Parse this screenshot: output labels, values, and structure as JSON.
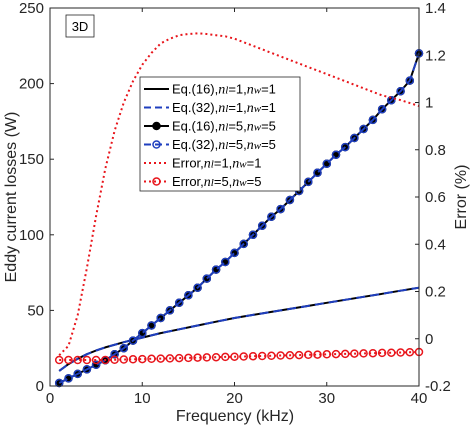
{
  "chart_data": {
    "type": "line",
    "annotation": "3D",
    "xlabel": "Frequency (kHz)",
    "ylabel_left": "Eddy current losses (W)",
    "ylabel_right": "Error (%)",
    "xlim": [
      0,
      40
    ],
    "ylim_left": [
      0,
      250
    ],
    "ylim_right": [
      -0.2,
      1.4
    ],
    "x_ticks": [
      0,
      10,
      20,
      30,
      40
    ],
    "y_ticks_left": [
      0,
      50,
      100,
      150,
      200,
      250
    ],
    "y_ticks_right": [
      -0.2,
      0,
      0.2,
      0.4,
      0.6,
      0.8,
      1,
      1.2,
      1.4
    ],
    "y_tick_labels_right": [
      "-0.2",
      "0",
      "0.2",
      "0.4",
      "0.6",
      "0.8",
      "1",
      "1.2",
      "1.4"
    ],
    "grid": false,
    "legend_position": "center-left",
    "series": [
      {
        "name": "Eq.(16), nl=1, nw=1",
        "legend_parts": {
          "prefix": "Eq.(16),",
          "sym1": "n",
          "sub1": "l",
          "eq1": "=1,",
          "sym2": "n",
          "sub2": "w",
          "eq2": "=1"
        },
        "axis": "left",
        "color": "#000000",
        "line": "solid",
        "marker": "none",
        "x": [
          1,
          2,
          3,
          4,
          5,
          6,
          8,
          10,
          12,
          14,
          16,
          18,
          20,
          22,
          24,
          26,
          28,
          30,
          32,
          34,
          36,
          38,
          40
        ],
        "values": [
          10,
          14.5,
          18,
          21,
          23.5,
          25.5,
          29,
          32,
          35,
          37.5,
          40,
          42.5,
          45,
          47,
          49,
          51,
          53,
          55,
          57,
          59,
          61,
          63,
          65
        ]
      },
      {
        "name": "Eq.(32), nl=1, nw=1",
        "legend_parts": {
          "prefix": "Eq.(32),",
          "sym1": "n",
          "sub1": "l",
          "eq1": "=1,",
          "sym2": "n",
          "sub2": "w",
          "eq2": "=1"
        },
        "axis": "left",
        "color": "#1f3fbf",
        "line": "dashed",
        "marker": "none",
        "x": [
          1,
          2,
          3,
          4,
          5,
          6,
          8,
          10,
          12,
          14,
          16,
          18,
          20,
          22,
          24,
          26,
          28,
          30,
          32,
          34,
          36,
          38,
          40
        ],
        "values": [
          10,
          14.5,
          18,
          21,
          23.5,
          25.5,
          29,
          32,
          35,
          37.5,
          40,
          42.5,
          45,
          47,
          49,
          51,
          53,
          55,
          57,
          59,
          61,
          63,
          65
        ]
      },
      {
        "name": "Eq.(16), nl=5, nw=5",
        "legend_parts": {
          "prefix": "Eq.(16),",
          "sym1": "n",
          "sub1": "l",
          "eq1": "=5,",
          "sym2": "n",
          "sub2": "w",
          "eq2": "=5"
        },
        "axis": "left",
        "color": "#000000",
        "line": "solid",
        "marker": "filled-circle",
        "x": [
          1,
          2,
          3,
          4,
          5,
          6,
          7,
          8,
          9,
          10,
          11,
          12,
          13,
          14,
          15,
          16,
          17,
          18,
          19,
          20,
          21,
          22,
          23,
          24,
          25,
          26,
          27,
          28,
          29,
          30,
          31,
          32,
          33,
          34,
          35,
          36,
          37,
          38,
          39,
          40
        ],
        "values": [
          2,
          5,
          8,
          11,
          14,
          17,
          21,
          25,
          30,
          35,
          40,
          45,
          50,
          55,
          60,
          65,
          71,
          77,
          82,
          88,
          94,
          100,
          106,
          112,
          117,
          123,
          129,
          135,
          141,
          147,
          153,
          158,
          164,
          170,
          176,
          183,
          189,
          195,
          202,
          220
        ]
      },
      {
        "name": "Eq.(32), nl=5, nw=5",
        "legend_parts": {
          "prefix": "Eq.(32),",
          "sym1": "n",
          "sub1": "l",
          "eq1": "=5,",
          "sym2": "n",
          "sub2": "w",
          "eq2": "=5"
        },
        "axis": "left",
        "color": "#1f3fbf",
        "line": "dashed",
        "marker": "open-circle",
        "x": [
          1,
          2,
          3,
          4,
          5,
          6,
          7,
          8,
          9,
          10,
          11,
          12,
          13,
          14,
          15,
          16,
          17,
          18,
          19,
          20,
          21,
          22,
          23,
          24,
          25,
          26,
          27,
          28,
          29,
          30,
          31,
          32,
          33,
          34,
          35,
          36,
          37,
          38,
          39,
          40
        ],
        "values": [
          2,
          5,
          8,
          11,
          14,
          17,
          21,
          25,
          30,
          35,
          40,
          45,
          50,
          55,
          60,
          65,
          71,
          77,
          82,
          88,
          94,
          100,
          106,
          112,
          117,
          123,
          129,
          135,
          141,
          147,
          153,
          158,
          164,
          170,
          176,
          183,
          189,
          195,
          202,
          220
        ]
      },
      {
        "name": "Error, nl=1, nw=1",
        "legend_parts": {
          "prefix": "Error,",
          "sym1": "n",
          "sub1": "l",
          "eq1": "=1,",
          "sym2": "n",
          "sub2": "w",
          "eq2": "=1"
        },
        "axis": "right",
        "color": "#e8151b",
        "line": "dotted",
        "marker": "none",
        "x": [
          1,
          2,
          3,
          4,
          5,
          6,
          7,
          8,
          9,
          10,
          11,
          12,
          13,
          14,
          15,
          16,
          17,
          18,
          19,
          20,
          22,
          24,
          26,
          28,
          30,
          32,
          34,
          36,
          38,
          40
        ],
        "values": [
          -0.07,
          -0.03,
          0.1,
          0.3,
          0.52,
          0.72,
          0.88,
          1.0,
          1.09,
          1.16,
          1.21,
          1.25,
          1.27,
          1.285,
          1.29,
          1.293,
          1.29,
          1.285,
          1.28,
          1.27,
          1.24,
          1.21,
          1.18,
          1.15,
          1.12,
          1.09,
          1.06,
          1.03,
          1.01,
          0.985
        ]
      },
      {
        "name": "Error, nl=5, nw=5",
        "legend_parts": {
          "prefix": "Error,",
          "sym1": "n",
          "sub1": "l",
          "eq1": "=5,",
          "sym2": "n",
          "sub2": "w",
          "eq2": "=5"
        },
        "axis": "right",
        "color": "#e8151b",
        "line": "dotted",
        "marker": "open-circle",
        "x": [
          1,
          2,
          3,
          4,
          5,
          6,
          7,
          8,
          9,
          10,
          11,
          12,
          13,
          14,
          15,
          16,
          17,
          18,
          19,
          20,
          21,
          22,
          23,
          24,
          25,
          26,
          27,
          28,
          29,
          30,
          31,
          32,
          33,
          34,
          35,
          36,
          37,
          38,
          39,
          40
        ],
        "values": [
          -0.09,
          -0.09,
          -0.09,
          -0.09,
          -0.09,
          -0.09,
          -0.089,
          -0.088,
          -0.087,
          -0.086,
          -0.085,
          -0.084,
          -0.083,
          -0.082,
          -0.081,
          -0.08,
          -0.079,
          -0.078,
          -0.077,
          -0.076,
          -0.075,
          -0.074,
          -0.073,
          -0.072,
          -0.071,
          -0.07,
          -0.069,
          -0.068,
          -0.067,
          -0.066,
          -0.065,
          -0.064,
          -0.063,
          -0.062,
          -0.061,
          -0.06,
          -0.059,
          -0.058,
          -0.057,
          -0.056
        ]
      }
    ]
  }
}
